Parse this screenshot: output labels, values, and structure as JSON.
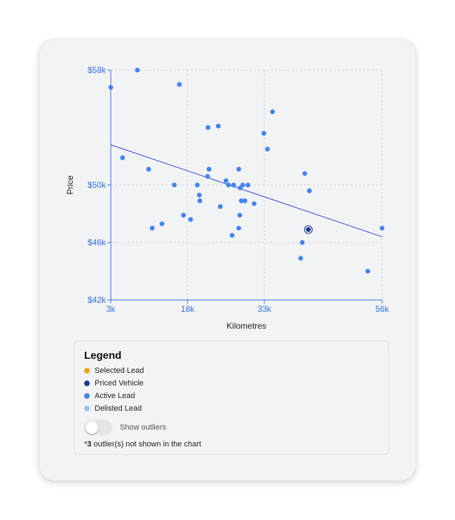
{
  "chart_data": {
    "type": "scatter",
    "xlabel": "Kilometres",
    "ylabel": "Price",
    "xlim": [
      3000,
      56000
    ],
    "ylim": [
      42000,
      58000
    ],
    "x_ticks": [
      3000,
      18000,
      33000,
      56000
    ],
    "x_tick_labels": [
      "3k",
      "18k",
      "33k",
      "56k"
    ],
    "y_ticks": [
      42000,
      46000,
      50000,
      58000
    ],
    "y_tick_labels": [
      "$42k",
      "$46k",
      "$50k",
      "$58k"
    ],
    "grid": true,
    "trendline": {
      "start": [
        3000,
        52800
      ],
      "end": [
        56000,
        46400
      ]
    },
    "series": [
      {
        "category": "Active Lead",
        "points": [
          [
            8200,
            58000
          ],
          [
            3000,
            56800
          ],
          [
            16400,
            57000
          ],
          [
            34600,
            55100
          ],
          [
            22000,
            54000
          ],
          [
            24000,
            54100
          ],
          [
            32900,
            53600
          ],
          [
            5300,
            51900
          ],
          [
            10400,
            51100
          ],
          [
            22200,
            51100
          ],
          [
            28000,
            51100
          ],
          [
            33600,
            52500
          ],
          [
            40900,
            50800
          ],
          [
            21900,
            50600
          ],
          [
            25500,
            50300
          ],
          [
            15400,
            50000
          ],
          [
            19900,
            50000
          ],
          [
            26000,
            50000
          ],
          [
            29800,
            50000
          ],
          [
            27000,
            50000
          ],
          [
            28800,
            50000
          ],
          [
            28300,
            49800
          ],
          [
            41800,
            49600
          ],
          [
            20300,
            49300
          ],
          [
            20400,
            48900
          ],
          [
            28500,
            48900
          ],
          [
            29200,
            48900
          ],
          [
            31000,
            48700
          ],
          [
            24400,
            48500
          ],
          [
            17200,
            47900
          ],
          [
            28200,
            47900
          ],
          [
            18600,
            47600
          ],
          [
            13000,
            47300
          ],
          [
            11100,
            47000
          ],
          [
            28000,
            47000
          ],
          [
            56000,
            47000
          ],
          [
            26700,
            46500
          ],
          [
            40400,
            46000
          ],
          [
            40100,
            44900
          ],
          [
            53200,
            44000
          ]
        ]
      },
      {
        "category": "Priced Vehicle",
        "points": [
          [
            41600,
            46900
          ]
        ]
      }
    ]
  },
  "legend": {
    "title": "Legend",
    "items": [
      {
        "label": "Selected Lead",
        "color": "#f0a21a"
      },
      {
        "label": "Priced Vehicle",
        "color": "#1f3a93"
      },
      {
        "label": "Active Lead",
        "color": "#4285f0"
      },
      {
        "label": "Delisted Lead",
        "color": "#9cc4f2"
      }
    ]
  },
  "controls": {
    "show_outliers_label": "Show outliers",
    "show_outliers_on": false
  },
  "note": {
    "prefix": "*",
    "count": "3",
    "suffix": " outlier(s) not shown in the chart"
  },
  "colors": {
    "axis": "#2f6fe4",
    "trendline": "#3340d9",
    "grid": "#cfd3da",
    "active": "#4285f0",
    "priced": "#1f3a93"
  }
}
